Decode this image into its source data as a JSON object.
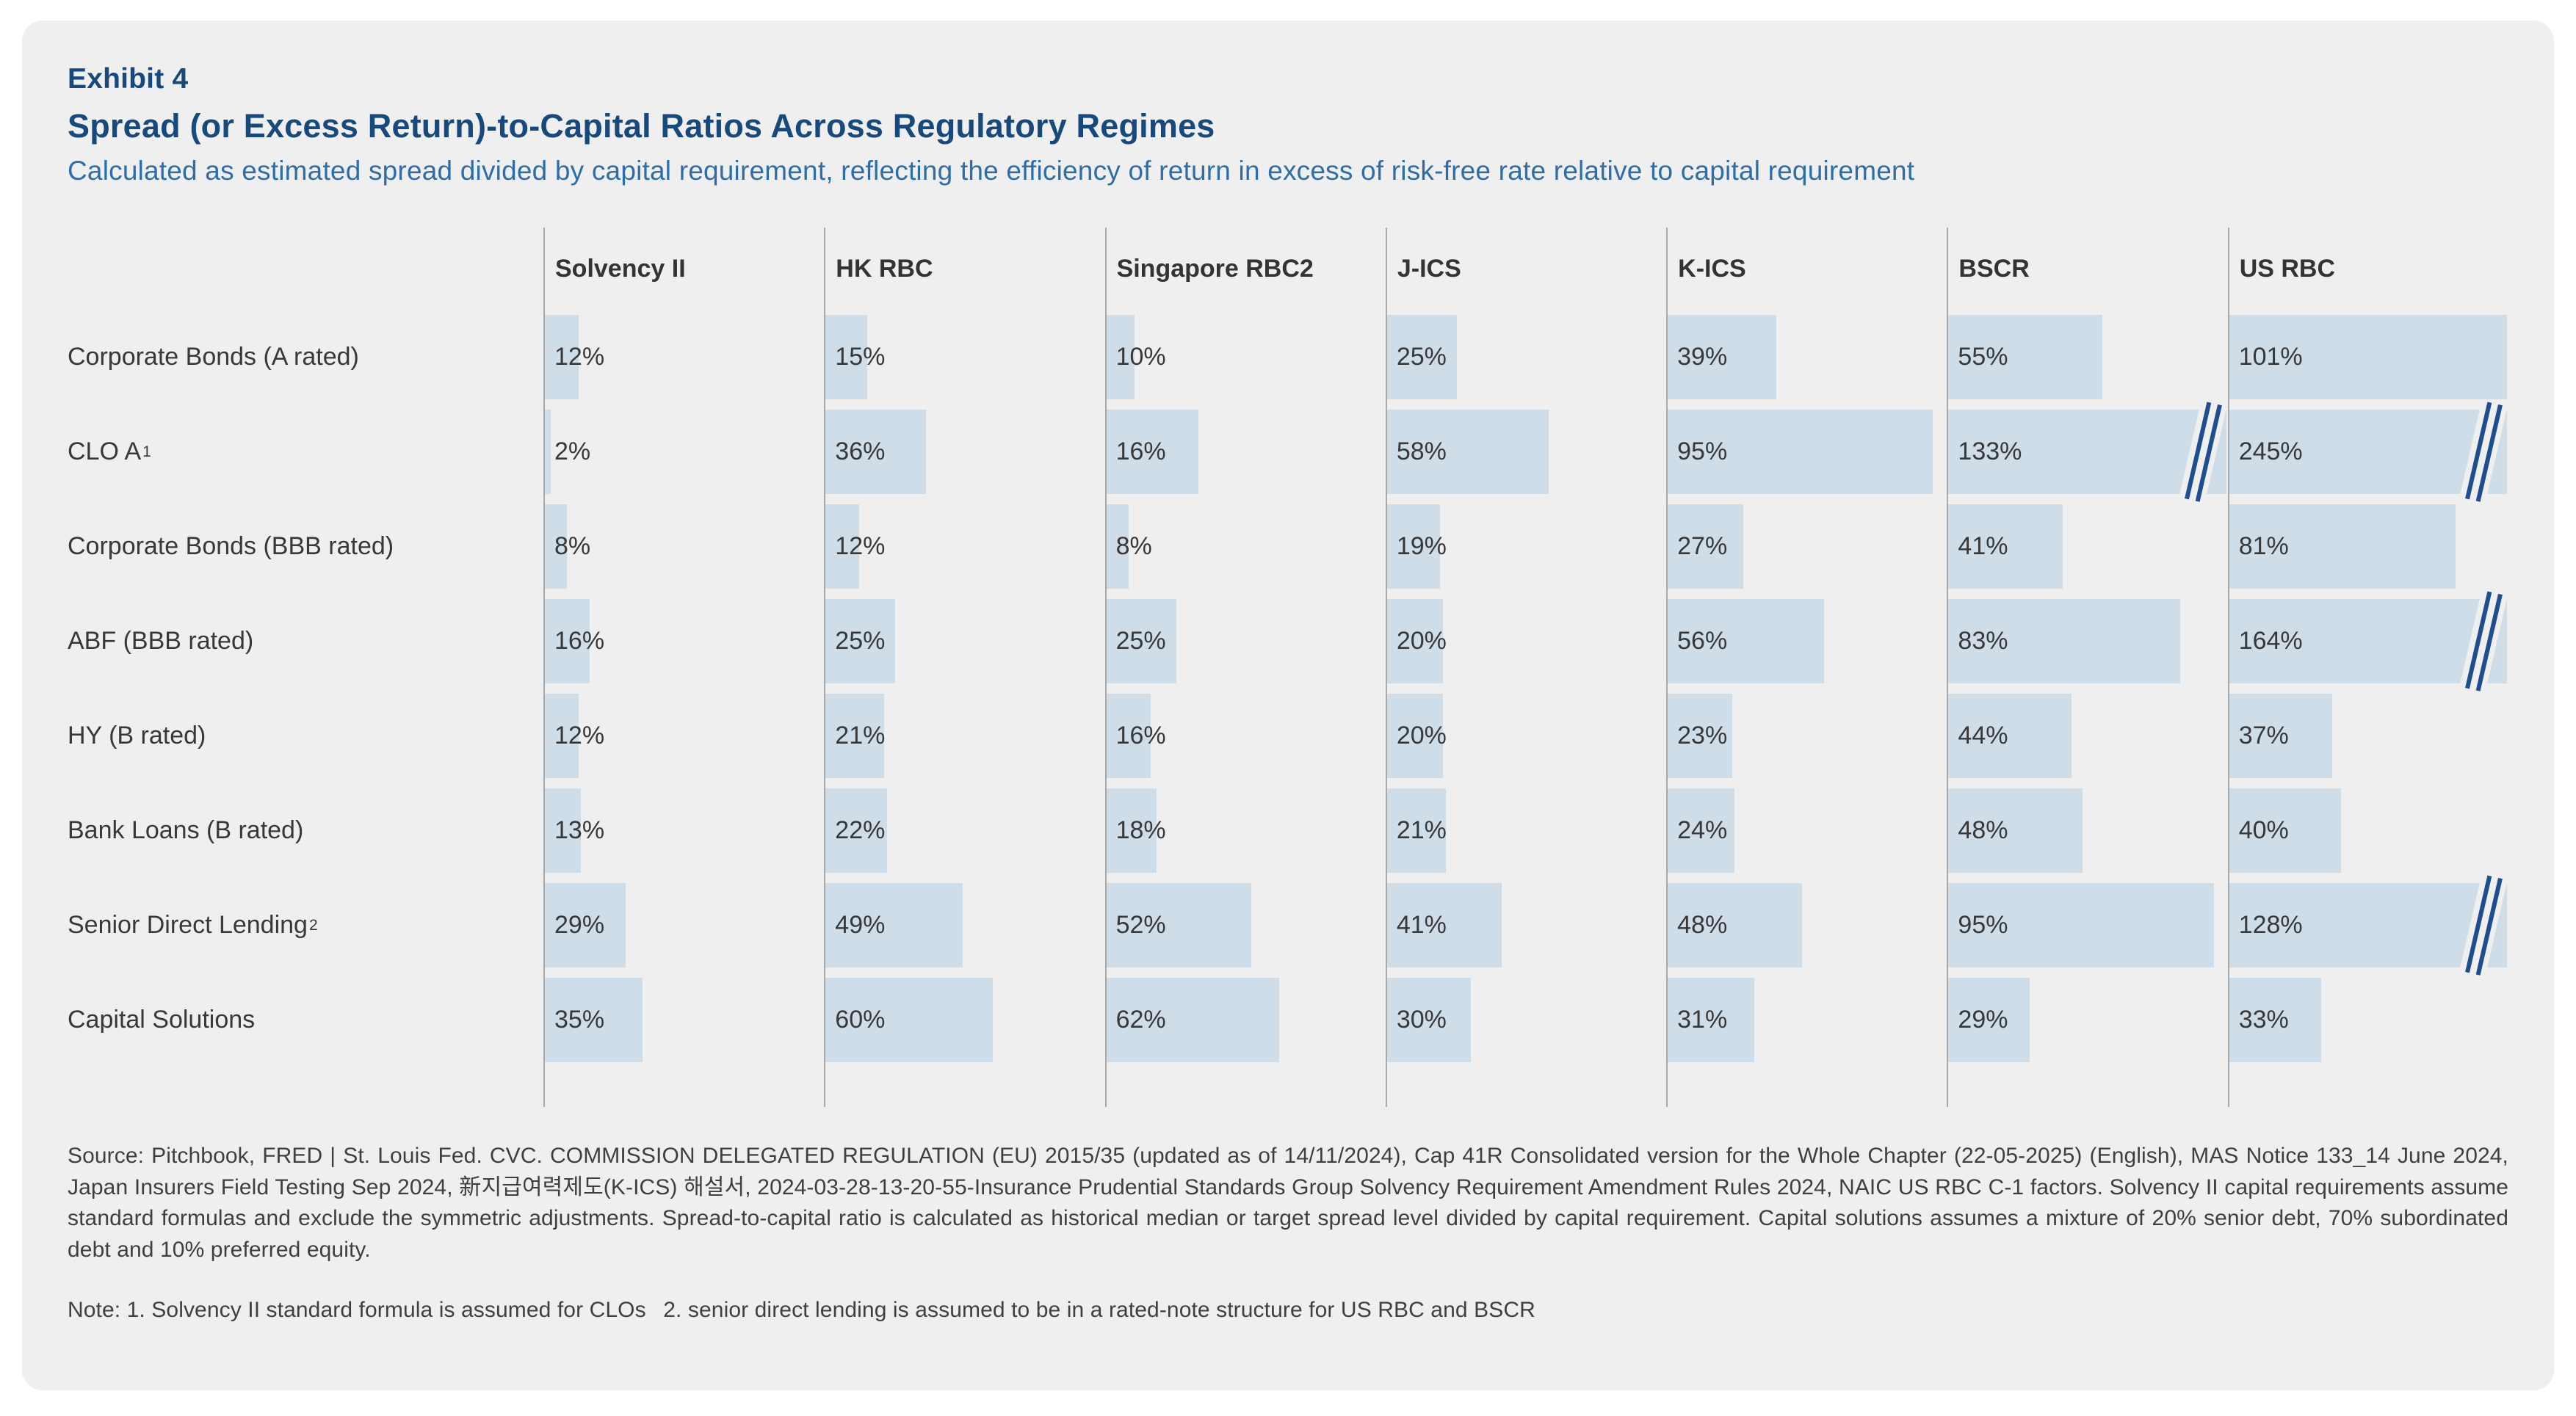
{
  "card": {
    "exhibit_label": "Exhibit 4",
    "title": "Spread (or Excess Return)-to-Capital Ratios Across Regulatory Regimes",
    "subtitle": "Calculated as estimated spread divided by capital requirement, reflecting the efficiency of return in excess of risk-free rate relative to capital requirement"
  },
  "chart_data": {
    "type": "bar",
    "orientation": "horizontal",
    "unit": "%",
    "column_full_width_pct": 100,
    "break_mark_above_pct": 105,
    "legend_position": "none",
    "grid": "vertical-dividers-only",
    "columns": [
      "Solvency II",
      "HK RBC",
      "Singapore RBC2",
      "J-ICS",
      "K-ICS",
      "BSCR",
      "US RBC"
    ],
    "rows": [
      {
        "label": "Corporate Bonds (A rated)",
        "sup": "",
        "values": [
          12,
          15,
          10,
          25,
          39,
          55,
          101
        ]
      },
      {
        "label": "CLO A",
        "sup": "1",
        "values": [
          2,
          36,
          16,
          58,
          95,
          133,
          245
        ]
      },
      {
        "label": "Corporate Bonds (BBB rated)",
        "sup": "",
        "values": [
          8,
          12,
          8,
          19,
          27,
          41,
          81
        ]
      },
      {
        "label": "ABF (BBB rated)",
        "sup": "",
        "values": [
          16,
          25,
          25,
          20,
          56,
          83,
          164
        ]
      },
      {
        "label": "HY (B rated)",
        "sup": "",
        "values": [
          12,
          21,
          16,
          20,
          23,
          44,
          37
        ]
      },
      {
        "label": "Bank Loans (B rated)",
        "sup": "",
        "values": [
          13,
          22,
          18,
          21,
          24,
          48,
          40
        ]
      },
      {
        "label": "Senior Direct Lending",
        "sup": "2",
        "values": [
          29,
          49,
          52,
          41,
          48,
          95,
          128
        ]
      },
      {
        "label": "Capital Solutions",
        "sup": "",
        "values": [
          35,
          60,
          62,
          30,
          31,
          29,
          33
        ]
      }
    ],
    "bar_overrides_pct": {
      "1,2": 33
    }
  },
  "source": {
    "text": "Source: Pitchbook, FRED | St. Louis Fed. CVC. COMMISSION DELEGATED REGULATION (EU) 2015/35 (updated as of 14/11/2024), Cap 41R Consolidated version for the Whole Chapter (22-05-2025) (English), MAS Notice 133_14 June 2024, Japan Insurers Field Testing Sep 2024, 新지급여력제도(K-ICS) 해설서, 2024-03-28-13-20-55-Insurance Prudential Standards Group Solvency Requirement Amendment Rules 2024, NAIC US RBC C-1 factors. Solvency II capital requirements assume standard formulas and exclude the symmetric adjustments. Spread-to-capital ratio is calculated as historical median or target spread level divided by capital requirement. Capital solutions assumes a mixture of 20% senior debt, 70% subordinated debt and 10% preferred equity."
  },
  "note": {
    "text": "Note: 1. Solvency II standard formula is assumed for CLOs  2. senior direct lending is assumed to be in a rated-note structure for US RBC and BSCR"
  },
  "colors": {
    "page_bg": "#ffffff",
    "card_bg": "#f0efef",
    "title": "#17497c",
    "subtitle": "#2e6da8",
    "bar": "#cfdde9",
    "text": "#383838",
    "divider": "#a9a9a9",
    "break_mark": "#1e4e8f",
    "source": "#3f3f3f"
  }
}
